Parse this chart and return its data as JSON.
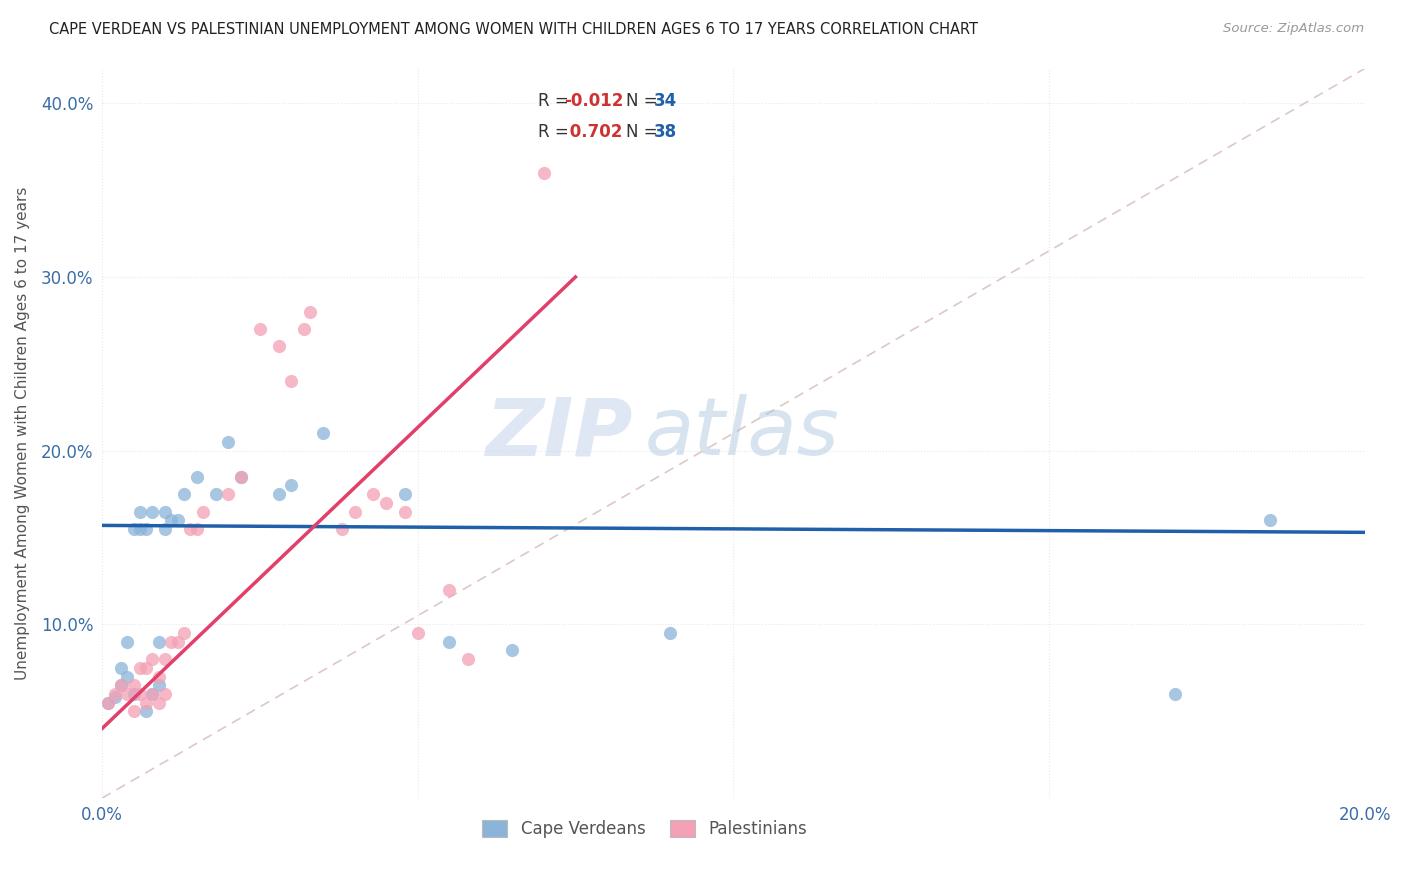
{
  "title": "CAPE VERDEAN VS PALESTINIAN UNEMPLOYMENT AMONG WOMEN WITH CHILDREN AGES 6 TO 17 YEARS CORRELATION CHART",
  "source": "Source: ZipAtlas.com",
  "ylabel": "Unemployment Among Women with Children Ages 6 to 17 years",
  "xlim": [
    0.0,
    0.2
  ],
  "ylim": [
    0.0,
    0.42
  ],
  "xticks": [
    0.0,
    0.05,
    0.1,
    0.15,
    0.2
  ],
  "xticklabels": [
    "0.0%",
    "",
    "",
    "",
    "20.0%"
  ],
  "yticks": [
    0.0,
    0.1,
    0.2,
    0.3,
    0.4
  ],
  "yticklabels": [
    "",
    "10.0%",
    "20.0%",
    "30.0%",
    "40.0%"
  ],
  "cv_R": -0.012,
  "cv_N": 34,
  "pal_R": 0.702,
  "pal_N": 38,
  "cv_color": "#8ab4d8",
  "pal_color": "#f4a0b5",
  "cv_line_color": "#2060aa",
  "pal_line_color": "#e0406a",
  "diagonal_color": "#ddc8c8",
  "watermark_zip": "ZIP",
  "watermark_atlas": "atlas",
  "background_color": "#ffffff",
  "grid_color": "#e8e8e8",
  "cv_scatter_x": [
    0.001,
    0.002,
    0.003,
    0.003,
    0.004,
    0.004,
    0.005,
    0.005,
    0.006,
    0.006,
    0.007,
    0.007,
    0.008,
    0.008,
    0.009,
    0.009,
    0.01,
    0.01,
    0.011,
    0.012,
    0.013,
    0.015,
    0.018,
    0.02,
    0.022,
    0.028,
    0.03,
    0.035,
    0.048,
    0.055,
    0.065,
    0.09,
    0.17,
    0.185
  ],
  "cv_scatter_y": [
    0.055,
    0.058,
    0.075,
    0.065,
    0.07,
    0.09,
    0.06,
    0.155,
    0.155,
    0.165,
    0.05,
    0.155,
    0.06,
    0.165,
    0.065,
    0.09,
    0.155,
    0.165,
    0.16,
    0.16,
    0.175,
    0.185,
    0.175,
    0.205,
    0.185,
    0.175,
    0.18,
    0.21,
    0.175,
    0.09,
    0.085,
    0.095,
    0.06,
    0.16
  ],
  "pal_scatter_x": [
    0.001,
    0.002,
    0.003,
    0.004,
    0.005,
    0.005,
    0.006,
    0.006,
    0.007,
    0.007,
    0.008,
    0.008,
    0.009,
    0.009,
    0.01,
    0.01,
    0.011,
    0.012,
    0.013,
    0.014,
    0.015,
    0.016,
    0.02,
    0.022,
    0.025,
    0.028,
    0.03,
    0.032,
    0.033,
    0.038,
    0.04,
    0.043,
    0.045,
    0.048,
    0.05,
    0.055,
    0.058,
    0.07
  ],
  "pal_scatter_y": [
    0.055,
    0.06,
    0.065,
    0.06,
    0.05,
    0.065,
    0.06,
    0.075,
    0.055,
    0.075,
    0.06,
    0.08,
    0.055,
    0.07,
    0.06,
    0.08,
    0.09,
    0.09,
    0.095,
    0.155,
    0.155,
    0.165,
    0.175,
    0.185,
    0.27,
    0.26,
    0.24,
    0.27,
    0.28,
    0.155,
    0.165,
    0.175,
    0.17,
    0.165,
    0.095,
    0.12,
    0.08,
    0.36
  ],
  "cv_line_x": [
    0.0,
    0.2
  ],
  "cv_line_y": [
    0.157,
    0.153
  ],
  "pal_line_x": [
    0.0,
    0.075
  ],
  "pal_line_y": [
    0.04,
    0.3
  ]
}
